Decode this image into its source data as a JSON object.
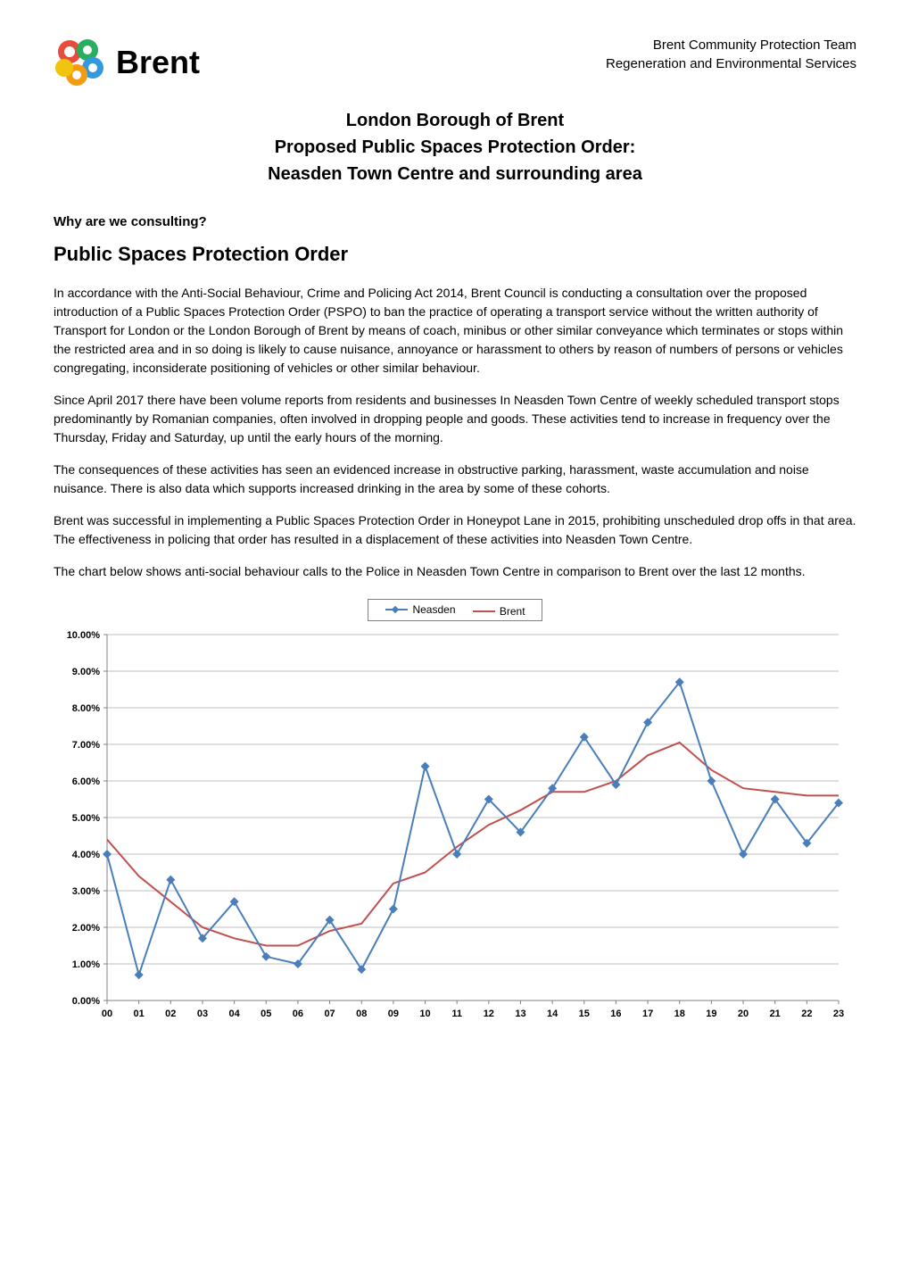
{
  "header": {
    "logo_text": "Brent",
    "right_line1": "Brent Community Protection Team",
    "right_line2": "Regeneration and Environmental Services"
  },
  "title": {
    "line1": "London Borough of Brent",
    "line2": "Proposed Public Spaces Protection Order:",
    "line3": "Neasden Town Centre and surrounding area"
  },
  "sections": {
    "why_heading": "Why are we consulting?",
    "main_heading": "Public Spaces Protection Order",
    "para1": "In accordance with the Anti-Social Behaviour, Crime and Policing Act 2014, Brent Council is conducting a consultation over the proposed introduction of a Public Spaces Protection Order (PSPO) to ban the practice of operating a transport service without the written authority of Transport for London or the London Borough of Brent by means of coach, minibus or other similar conveyance which terminates or stops within the restricted area and in so doing is likely to cause nuisance, annoyance or harassment to others by reason of numbers of persons or vehicles congregating, inconsiderate positioning of vehicles or other similar behaviour.",
    "para2": "Since April 2017 there have been volume reports from residents and businesses In Neasden Town Centre of weekly scheduled transport stops predominantly by Romanian companies, often involved in dropping people and goods. These activities tend to increase in frequency over the Thursday, Friday and Saturday, up until the early hours of the morning.",
    "para3": "The consequences of these activities has seen an evidenced increase in obstructive parking, harassment, waste accumulation and noise nuisance. There is also data which supports increased drinking in the area by some of these cohorts.",
    "para4": "Brent was successful in implementing a Public Spaces Protection Order in Honeypot Lane in 2015, prohibiting unscheduled drop offs in that area. The effectiveness in policing that order has resulted in a displacement of these activities into Neasden Town Centre.",
    "para5": "The chart below shows anti-social behaviour calls to the Police in Neasden Town Centre in comparison to Brent over the last 12 months."
  },
  "chart": {
    "type": "line",
    "legend": {
      "series1_label": "Neasden",
      "series2_label": "Brent"
    },
    "x_categories": [
      "00",
      "01",
      "02",
      "03",
      "04",
      "05",
      "06",
      "07",
      "08",
      "09",
      "10",
      "11",
      "12",
      "13",
      "14",
      "15",
      "16",
      "17",
      "18",
      "19",
      "20",
      "21",
      "22",
      "23"
    ],
    "y_ticks": [
      "0.00%",
      "1.00%",
      "2.00%",
      "3.00%",
      "4.00%",
      "5.00%",
      "6.00%",
      "7.00%",
      "8.00%",
      "9.00%",
      "10.00%"
    ],
    "ylim": [
      0,
      10
    ],
    "xlim": [
      0,
      23
    ],
    "series": {
      "neasden": {
        "color": "#4a7ebb",
        "marker": "diamond",
        "marker_size": 5,
        "line_width": 2,
        "values": [
          4.0,
          0.7,
          3.3,
          1.7,
          2.7,
          1.2,
          1.0,
          2.2,
          0.85,
          2.5,
          6.4,
          4.0,
          5.5,
          4.6,
          5.8,
          7.2,
          5.9,
          7.6,
          8.7,
          6.0,
          4.0,
          5.5,
          4.3,
          5.4
        ]
      },
      "brent": {
        "color": "#c0504d",
        "marker": "none",
        "line_width": 2,
        "values": [
          4.4,
          3.4,
          2.7,
          2.0,
          1.7,
          1.5,
          1.5,
          1.9,
          2.1,
          3.2,
          3.5,
          4.2,
          4.8,
          5.2,
          5.7,
          5.7,
          6.0,
          6.7,
          7.05,
          6.3,
          5.8,
          5.7,
          5.6,
          5.6
        ]
      }
    },
    "background_color": "#ffffff",
    "grid_color": "#bfbfbf",
    "axis_fontsize": 11,
    "axis_fontweight": "bold"
  },
  "logo_colors": {
    "segment1": "#e74c3c",
    "segment2": "#f39c12",
    "segment3": "#27ae60",
    "segment4": "#3498db",
    "segment5": "#9b59b6",
    "segment6": "#f1c40f"
  }
}
